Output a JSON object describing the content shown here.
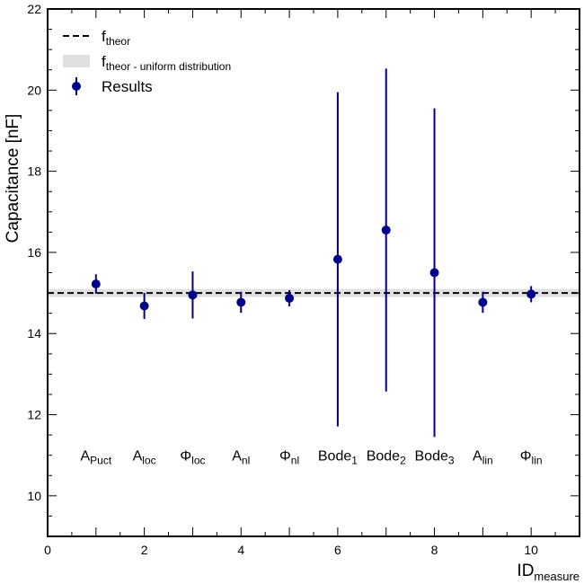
{
  "chart_data": {
    "type": "scatter",
    "title": "",
    "xlabel": {
      "main": "ID",
      "sub": "measure"
    },
    "ylabel": "Capacitance [nF]",
    "xlim": [
      0,
      11
    ],
    "ylim": [
      9,
      22
    ],
    "x_ticks": [
      0,
      2,
      4,
      6,
      8,
      10
    ],
    "y_ticks": [
      10,
      12,
      14,
      16,
      18,
      20,
      22
    ],
    "grid": false,
    "legend": {
      "placement": "top-left",
      "entries": [
        {
          "label": "f",
          "sub": "theor",
          "kind": "dashed-line"
        },
        {
          "label": "f",
          "sub": "theor - uniform distribution",
          "kind": "band"
        },
        {
          "label": "Results",
          "sub": "",
          "kind": "errorbar-marker"
        }
      ]
    },
    "reference": {
      "name": "f_theor",
      "value": 15.0,
      "band": [
        14.9,
        15.1
      ]
    },
    "series": [
      {
        "name": "Results",
        "color": "#00008b",
        "points": [
          {
            "x": 1,
            "y": 15.22,
            "yerr": 0.24,
            "label": "A",
            "label_sub": "Puct"
          },
          {
            "x": 2,
            "y": 14.68,
            "yerr": 0.32,
            "label": "A",
            "label_sub": "loc"
          },
          {
            "x": 3,
            "y": 14.95,
            "yerr": 0.58,
            "label": "Φ",
            "label_sub": "loc"
          },
          {
            "x": 4,
            "y": 14.77,
            "yerr": 0.26,
            "label": "A",
            "label_sub": "nl"
          },
          {
            "x": 5,
            "y": 14.87,
            "yerr": 0.2,
            "label": "Φ",
            "label_sub": "nl"
          },
          {
            "x": 6,
            "y": 15.83,
            "yerr": 4.12,
            "label": "Bode",
            "label_sub": "1"
          },
          {
            "x": 7,
            "y": 16.55,
            "yerr": 3.98,
            "label": "Bode",
            "label_sub": "2"
          },
          {
            "x": 8,
            "y": 15.5,
            "yerr": 4.05,
            "label": "Bode",
            "label_sub": "3"
          },
          {
            "x": 9,
            "y": 14.77,
            "yerr": 0.26,
            "label": "A",
            "label_sub": "lin"
          },
          {
            "x": 10,
            "y": 14.97,
            "yerr": 0.2,
            "label": "Φ",
            "label_sub": "lin"
          }
        ]
      }
    ],
    "category_label_y": 11.0
  }
}
